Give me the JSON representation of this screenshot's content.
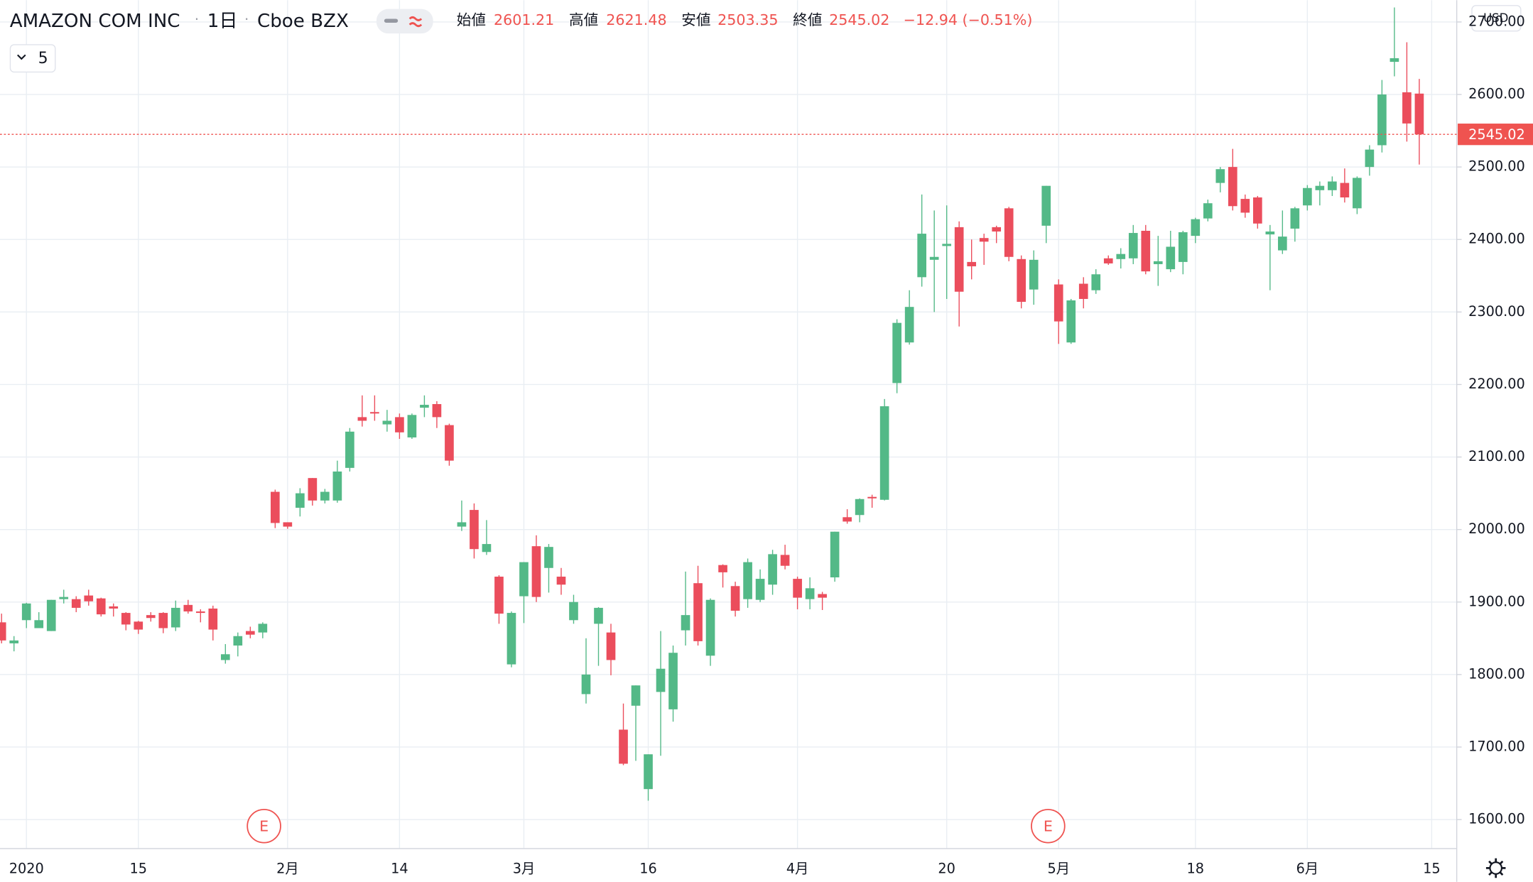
{
  "chart_data": {
    "type": "candlestick",
    "title": "AMAZON COM INC",
    "interval": "1日",
    "exchange": "Cboe BZX",
    "labels": {
      "open": "始値",
      "high": "高値",
      "low": "安値",
      "close": "終値"
    },
    "change": "−12.94 (−0.51%)",
    "currency": "USD",
    "interval_button": "5",
    "markers": [
      "E",
      "E"
    ],
    "up_color": "#53b987",
    "down_color": "#eb4d5c",
    "grid": true,
    "categories": [
      null,
      null,
      "2020",
      null,
      null,
      null,
      null,
      null,
      null,
      null,
      null,
      "15",
      null,
      null,
      null,
      null,
      null,
      null,
      null,
      null,
      null,
      null,
      null,
      "2月",
      null,
      null,
      null,
      null,
      null,
      null,
      null,
      null,
      "14",
      null,
      null,
      null,
      null,
      null,
      null,
      null,
      null,
      null,
      "3月",
      null,
      null,
      null,
      null,
      null,
      null,
      null,
      null,
      null,
      "16",
      null,
      null,
      null,
      null,
      null,
      null,
      null,
      null,
      null,
      null,
      null,
      "4月",
      null,
      null,
      null,
      null,
      null,
      null,
      null,
      null,
      null,
      null,
      null,
      "20",
      null,
      null,
      null,
      null,
      null,
      null,
      null,
      null,
      "5月",
      null,
      null,
      null,
      null,
      null,
      null,
      null,
      null,
      null,
      null,
      "18",
      null,
      null,
      null,
      null,
      null,
      null,
      null,
      null,
      "6月",
      null,
      null,
      null,
      null,
      null,
      null,
      null,
      null,
      null,
      "15"
    ],
    "open": [
      1872,
      1843,
      1875,
      1864,
      1860,
      1904,
      1904,
      1909,
      1905,
      1894,
      1885,
      1873,
      1882,
      1885,
      1865,
      1896,
      1887,
      1891,
      1820,
      1840,
      1860,
      1858,
      2052,
      2010,
      2030,
      2071,
      2040,
      2040,
      2085,
      2155,
      2162,
      2145,
      2155,
      2127,
      2168,
      2173,
      2144,
      2004,
      2027,
      1969,
      1935,
      1814,
      1908,
      1977,
      1947,
      1935,
      1875,
      1773,
      1870,
      1858,
      1724,
      1757,
      1642,
      1776,
      1752,
      1861,
      1926,
      1826,
      1951,
      1922,
      1904,
      1903,
      1924,
      1965,
      1932,
      1904,
      1911,
      1934,
      2017,
      2020,
      2045,
      2041,
      2202,
      2258,
      2348,
      2372,
      2391,
      2417,
      2369,
      2402,
      2417,
      2443,
      2373,
      2331,
      2419,
      2338,
      2258,
      2339,
      2330,
      2374,
      2373,
      2374,
      2412,
      2366,
      2359,
      2369,
      2405,
      2429,
      2478,
      2500,
      2456,
      2458,
      2407,
      2385,
      2415,
      2447,
      2468,
      2468,
      2478,
      2443,
      2500,
      2530,
      2645,
      2603,
      2601.21,
      null
    ],
    "high": [
      1884,
      1853,
      1899,
      1886,
      1903,
      1917,
      1908,
      1917,
      1906,
      1898,
      1886,
      1874,
      1886,
      1886,
      1902,
      1903,
      1890,
      1895,
      1842,
      1858,
      1866,
      1872,
      2055,
      2010,
      2057,
      2071,
      2056,
      2095,
      2140,
      2185,
      2185,
      2165,
      2160,
      2160,
      2185,
      2177,
      2146,
      2040,
      2036,
      2013,
      1937,
      1887,
      1955,
      1992,
      1980,
      1947,
      1910,
      1850,
      1893,
      1870,
      1760,
      1785,
      1690,
      1860,
      1840,
      1942,
      1950,
      1905,
      1952,
      1928,
      1960,
      1945,
      1972,
      1979,
      1935,
      1934,
      1914,
      1997,
      2028,
      2043,
      2048,
      2180,
      2290,
      2330,
      2462,
      2440,
      2447,
      2425,
      2400,
      2408,
      2419,
      2445,
      2378,
      2385,
      2474,
      2345,
      2318,
      2348,
      2359,
      2378,
      2388,
      2420,
      2420,
      2405,
      2412,
      2412,
      2430,
      2455,
      2500,
      2525,
      2462,
      2460,
      2420,
      2440,
      2445,
      2475,
      2480,
      2487,
      2498,
      2487,
      2530,
      2620,
      2720,
      2672,
      2621.48,
      null
    ],
    "low": [
      1843,
      1832,
      1864,
      1864,
      1860,
      1898,
      1886,
      1895,
      1880,
      1880,
      1861,
      1856,
      1873,
      1857,
      1860,
      1884,
      1872,
      1847,
      1815,
      1825,
      1850,
      1850,
      2002,
      2001,
      2018,
      2033,
      2036,
      2037,
      2080,
      2142,
      2150,
      2135,
      2125,
      2125,
      2155,
      2140,
      2088,
      1998,
      1960,
      1965,
      1870,
      1810,
      1871,
      1900,
      1913,
      1910,
      1870,
      1760,
      1812,
      1799,
      1675,
      1681,
      1626,
      1688,
      1735,
      1840,
      1840,
      1812,
      1920,
      1880,
      1892,
      1900,
      1910,
      1945,
      1890,
      1890,
      1889,
      1928,
      2008,
      2010,
      2030,
      2040,
      2188,
      2255,
      2335,
      2300,
      2318,
      2280,
      2345,
      2365,
      2395,
      2370,
      2305,
      2310,
      2395,
      2256,
      2256,
      2305,
      2325,
      2365,
      2360,
      2366,
      2352,
      2336,
      2355,
      2352,
      2395,
      2425,
      2465,
      2440,
      2430,
      2415,
      2330,
      2380,
      2397,
      2440,
      2447,
      2460,
      2451,
      2435,
      2488,
      2520,
      2625,
      2535,
      2503.35,
      null
    ],
    "close": [
      1847,
      1847,
      1898,
      1875,
      1903,
      1907,
      1892,
      1901,
      1883,
      1891,
      1869,
      1862,
      1878,
      1864,
      1892,
      1887,
      1885,
      1862,
      1828,
      1853,
      1855,
      1870,
      2009,
      2004,
      2050,
      2040,
      2052,
      2080,
      2135,
      2150,
      2160,
      2150,
      2134,
      2158,
      2172,
      2155,
      2095,
      2010,
      1973,
      1980,
      1884,
      1885,
      1955,
      1907,
      1976,
      1924,
      1900,
      1800,
      1892,
      1820,
      1677,
      1785,
      1690,
      1808,
      1830,
      1882,
      1846,
      1903,
      1941,
      1888,
      1955,
      1932,
      1966,
      1950,
      1906,
      1919,
      1906,
      1997,
      2011,
      2042,
      2043,
      2170,
      2285,
      2307,
      2408,
      2376,
      2394,
      2328,
      2363,
      2397,
      2411,
      2376,
      2314,
      2372,
      2474,
      2287,
      2316,
      2318,
      2352,
      2367,
      2380,
      2409,
      2356,
      2370,
      2390,
      2410,
      2428,
      2450,
      2497,
      2446,
      2437,
      2422,
      2411,
      2404,
      2443,
      2471,
      2474,
      2480,
      2458,
      2485,
      2524,
      2600,
      2650,
      2560,
      2545.02,
      null
    ],
    "ylim": [
      1560,
      2730
    ],
    "yticks": [
      {
        "value": 1600,
        "label": "1600.00"
      },
      {
        "value": 1700,
        "label": "1700.00"
      },
      {
        "value": 1800,
        "label": "1800.00"
      },
      {
        "value": 1900,
        "label": "1900.00"
      },
      {
        "value": 2000,
        "label": "2000.00"
      },
      {
        "value": 2100,
        "label": "2100.00"
      },
      {
        "value": 2200,
        "label": "2200.00"
      },
      {
        "value": 2300,
        "label": "2300.00"
      },
      {
        "value": 2400,
        "label": "2400.00"
      },
      {
        "value": 2500,
        "label": "2500.00"
      },
      {
        "value": 2600,
        "label": "2600.00"
      },
      {
        "value": 2700,
        "label": "2700.00"
      }
    ]
  }
}
